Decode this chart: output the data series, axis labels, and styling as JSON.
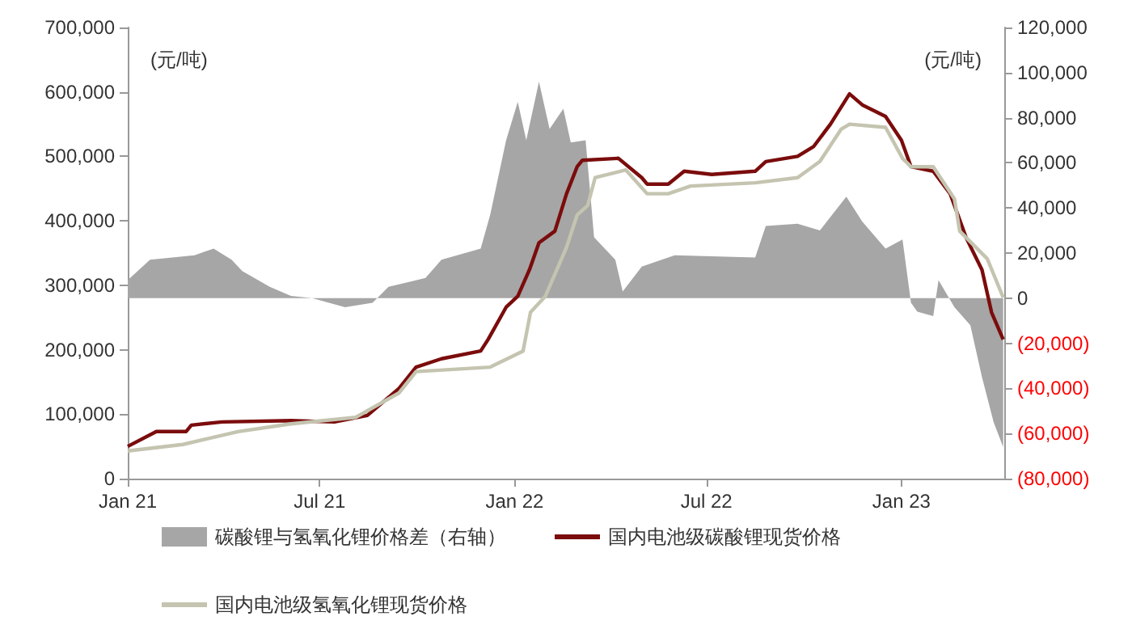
{
  "chart_data": {
    "type": "line",
    "ylabel": "(元/吨)",
    "y2label": "(元/吨)",
    "xlim": [
      "2021-01-01",
      "2023-04-08"
    ],
    "xticks": [
      {
        "value": "2021-01-01",
        "label": "Jan 21"
      },
      {
        "value": "2021-07-01",
        "label": "Jul 21"
      },
      {
        "value": "2022-01-01",
        "label": "Jan 22"
      },
      {
        "value": "2022-07-01",
        "label": "Jul 22"
      },
      {
        "value": "2023-01-01",
        "label": "Jan 23"
      }
    ],
    "ylim": [
      0,
      700000
    ],
    "yticks": [
      {
        "value": 0,
        "label": "0"
      },
      {
        "value": 100000,
        "label": "100,000"
      },
      {
        "value": 200000,
        "label": "200,000"
      },
      {
        "value": 300000,
        "label": "300,000"
      },
      {
        "value": 400000,
        "label": "400,000"
      },
      {
        "value": 500000,
        "label": "500,000"
      },
      {
        "value": 600000,
        "label": "600,000"
      },
      {
        "value": 700000,
        "label": "700,000"
      }
    ],
    "y2lim": [
      -80000,
      120000
    ],
    "y2ticks": [
      {
        "value": -80000,
        "label": "(80,000)"
      },
      {
        "value": -60000,
        "label": "(60,000)"
      },
      {
        "value": -40000,
        "label": "(40,000)"
      },
      {
        "value": -20000,
        "label": "(20,000)"
      },
      {
        "value": 0,
        "label": "0"
      },
      {
        "value": 20000,
        "label": "20,000"
      },
      {
        "value": 40000,
        "label": "40,000"
      },
      {
        "value": 60000,
        "label": "60,000"
      },
      {
        "value": 80000,
        "label": "80,000"
      },
      {
        "value": 100000,
        "label": "100,000"
      },
      {
        "value": 120000,
        "label": "120,000"
      }
    ],
    "grid": false,
    "legend": "bottom",
    "marker": "none",
    "line_style": "solid",
    "series": [
      {
        "name": "碳酸锂与氢氧化锂价格差（右轴）",
        "type": "area",
        "axis": "y2",
        "color": "#a6a6a6",
        "x": [
          "2021-01-01",
          "2021-01-22",
          "2021-03-05",
          "2021-03-23",
          "2021-04-09",
          "2021-04-19",
          "2021-05-15",
          "2021-06-04",
          "2021-06-24",
          "2021-07-25",
          "2021-08-20",
          "2021-09-04",
          "2021-10-09",
          "2021-10-24",
          "2021-11-30",
          "2021-12-09",
          "2021-12-24",
          "2022-01-04",
          "2022-01-12",
          "2022-01-24",
          "2022-02-03",
          "2022-02-16",
          "2022-02-23",
          "2022-03-09",
          "2022-03-17",
          "2022-04-06",
          "2022-04-13",
          "2022-05-01",
          "2022-06-01",
          "2022-08-16",
          "2022-08-26",
          "2022-09-25",
          "2022-10-16",
          "2022-11-10",
          "2022-11-25",
          "2022-12-17",
          "2023-01-02",
          "2023-01-10",
          "2023-01-16",
          "2023-01-31",
          "2023-02-05",
          "2023-02-20",
          "2023-03-07",
          "2023-03-18",
          "2023-03-29",
          "2023-04-07"
        ],
        "values": [
          8000,
          17000,
          19000,
          22000,
          17000,
          12000,
          5000,
          1000,
          0,
          -4000,
          -2000,
          5000,
          9000,
          17000,
          22000,
          37000,
          70000,
          87000,
          70000,
          96000,
          75000,
          84000,
          69000,
          70000,
          27000,
          17000,
          3000,
          14000,
          19000,
          18000,
          32000,
          33000,
          30000,
          45000,
          34000,
          22000,
          26000,
          -2000,
          -6000,
          -8000,
          8000,
          -4000,
          -12000,
          -35000,
          -55000,
          -66000
        ]
      },
      {
        "name": "国内电池级碳酸锂现货价格",
        "color": "#7b0c0c",
        "x": [
          "2021-01-01",
          "2021-01-28",
          "2021-02-25",
          "2021-03-02",
          "2021-03-31",
          "2021-06-04",
          "2021-07-15",
          "2021-08-15",
          "2021-09-14",
          "2021-09-30",
          "2021-10-24",
          "2021-11-30",
          "2021-12-07",
          "2021-12-24",
          "2022-01-04",
          "2022-01-15",
          "2022-01-24",
          "2022-02-08",
          "2022-02-19",
          "2022-03-01",
          "2022-03-06",
          "2022-04-09",
          "2022-05-01",
          "2022-05-06",
          "2022-05-26",
          "2022-06-10",
          "2022-07-06",
          "2022-08-16",
          "2022-08-26",
          "2022-09-25",
          "2022-10-10",
          "2022-10-26",
          "2022-11-13",
          "2022-11-25",
          "2022-12-17",
          "2023-01-01",
          "2023-01-10",
          "2023-01-31",
          "2023-02-16",
          "2023-03-03",
          "2023-03-18",
          "2023-03-27",
          "2023-04-07"
        ],
        "values": [
          50000,
          73000,
          73000,
          83000,
          88000,
          90000,
          88000,
          98000,
          140000,
          173000,
          186000,
          198000,
          216000,
          266000,
          283000,
          324000,
          366000,
          384000,
          442000,
          484000,
          494000,
          497000,
          467000,
          457000,
          457000,
          477000,
          472000,
          477000,
          492000,
          500000,
          515000,
          550000,
          597000,
          580000,
          562000,
          525000,
          484000,
          477000,
          442000,
          374000,
          324000,
          258000,
          216000
        ]
      },
      {
        "name": "国内电池级氢氧化锂现货价格",
        "color": "#c4c4b0",
        "x": [
          "2021-01-01",
          "2021-02-22",
          "2021-04-15",
          "2021-06-04",
          "2021-08-04",
          "2021-09-14",
          "2021-09-30",
          "2021-12-09",
          "2022-01-09",
          "2022-01-16",
          "2022-01-30",
          "2022-02-19",
          "2022-03-01",
          "2022-03-11",
          "2022-03-18",
          "2022-04-16",
          "2022-05-06",
          "2022-05-26",
          "2022-06-16",
          "2022-08-16",
          "2022-09-25",
          "2022-10-16",
          "2022-11-05",
          "2022-11-13",
          "2022-12-17",
          "2023-01-02",
          "2023-01-10",
          "2023-01-31",
          "2023-02-20",
          "2023-02-25",
          "2023-03-23",
          "2023-04-07"
        ],
        "values": [
          43000,
          53000,
          73000,
          85000,
          95000,
          133000,
          166000,
          173000,
          198000,
          258000,
          283000,
          359000,
          409000,
          424000,
          467000,
          479000,
          442000,
          442000,
          454000,
          459000,
          467000,
          492000,
          542000,
          550000,
          545000,
          497000,
          484000,
          484000,
          434000,
          384000,
          341000,
          281000
        ]
      }
    ]
  }
}
